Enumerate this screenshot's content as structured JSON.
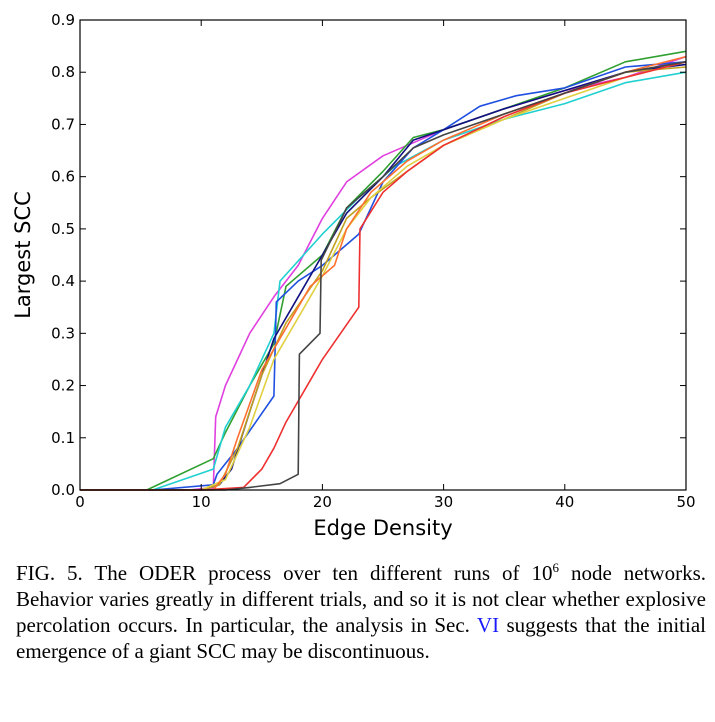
{
  "chart_data": {
    "type": "line",
    "xlabel": "Edge Density",
    "ylabel": "Largest SCC",
    "xlim": [
      0,
      50
    ],
    "ylim": [
      0,
      0.9
    ],
    "xticks": [
      0,
      10,
      20,
      30,
      40,
      50
    ],
    "yticks": [
      0.0,
      0.1,
      0.2,
      0.3,
      0.4,
      0.5,
      0.6,
      0.7,
      0.8,
      0.9
    ],
    "xtick_labels": [
      "0",
      "10",
      "20",
      "30",
      "40",
      "50"
    ],
    "ytick_labels": [
      "0.0",
      "0.1",
      "0.2",
      "0.3",
      "0.4",
      "0.5",
      "0.6",
      "0.7",
      "0.8",
      "0.9"
    ],
    "grid": false,
    "legend": "none",
    "series": [
      {
        "color": "#e040e0",
        "points": [
          [
            0,
            0
          ],
          [
            9,
            0
          ],
          [
            11,
            0.005
          ],
          [
            11.2,
            0.14
          ],
          [
            12,
            0.2
          ],
          [
            13,
            0.25
          ],
          [
            14,
            0.3
          ],
          [
            16,
            0.37
          ],
          [
            18,
            0.43
          ],
          [
            20,
            0.52
          ],
          [
            22,
            0.59
          ],
          [
            25,
            0.64
          ],
          [
            30,
            0.69
          ],
          [
            35,
            0.73
          ],
          [
            40,
            0.765
          ],
          [
            45,
            0.79
          ],
          [
            50,
            0.83
          ]
        ]
      },
      {
        "color": "#30a030",
        "points": [
          [
            0,
            0
          ],
          [
            5.5,
            0
          ],
          [
            11,
            0.06
          ],
          [
            12,
            0.11
          ],
          [
            14,
            0.2
          ],
          [
            16,
            0.28
          ],
          [
            17,
            0.39
          ],
          [
            20,
            0.45
          ],
          [
            22,
            0.54
          ],
          [
            25,
            0.61
          ],
          [
            27.5,
            0.675
          ],
          [
            30,
            0.69
          ],
          [
            35,
            0.73
          ],
          [
            40,
            0.77
          ],
          [
            45,
            0.82
          ],
          [
            50,
            0.84
          ]
        ]
      },
      {
        "color": "#20d0d0",
        "points": [
          [
            0,
            0
          ],
          [
            6,
            0
          ],
          [
            11,
            0.04
          ],
          [
            12,
            0.12
          ],
          [
            14,
            0.2
          ],
          [
            16,
            0.3
          ],
          [
            16.5,
            0.4
          ],
          [
            20,
            0.49
          ],
          [
            23,
            0.56
          ],
          [
            26,
            0.62
          ],
          [
            30,
            0.67
          ],
          [
            35,
            0.71
          ],
          [
            40,
            0.74
          ],
          [
            45,
            0.78
          ],
          [
            50,
            0.8
          ]
        ]
      },
      {
        "color": "#2050e0",
        "points": [
          [
            0,
            0
          ],
          [
            6,
            0
          ],
          [
            11,
            0.01
          ],
          [
            11.3,
            0.03
          ],
          [
            13,
            0.08
          ],
          [
            16,
            0.18
          ],
          [
            16.2,
            0.36
          ],
          [
            18,
            0.4
          ],
          [
            20,
            0.43
          ],
          [
            23,
            0.49
          ],
          [
            25,
            0.59
          ],
          [
            27.5,
            0.655
          ],
          [
            30,
            0.69
          ],
          [
            33,
            0.735
          ],
          [
            36,
            0.755
          ],
          [
            40,
            0.77
          ],
          [
            45,
            0.81
          ],
          [
            50,
            0.82
          ]
        ]
      },
      {
        "color": "#101080",
        "points": [
          [
            0,
            0
          ],
          [
            10,
            0
          ],
          [
            11.5,
            0.01
          ],
          [
            12.5,
            0.04
          ],
          [
            14,
            0.15
          ],
          [
            16,
            0.29
          ],
          [
            18,
            0.37
          ],
          [
            20,
            0.45
          ],
          [
            22,
            0.53
          ],
          [
            25,
            0.6
          ],
          [
            27.5,
            0.67
          ],
          [
            30,
            0.69
          ],
          [
            35,
            0.73
          ],
          [
            40,
            0.765
          ],
          [
            45,
            0.8
          ],
          [
            50,
            0.815
          ]
        ]
      },
      {
        "color": "#c0a020",
        "points": [
          [
            0,
            0
          ],
          [
            10,
            0
          ],
          [
            11.5,
            0.01
          ],
          [
            13,
            0.08
          ],
          [
            15,
            0.22
          ],
          [
            17,
            0.32
          ],
          [
            20,
            0.42
          ],
          [
            22,
            0.52
          ],
          [
            24,
            0.56
          ],
          [
            27,
            0.61
          ],
          [
            30,
            0.66
          ],
          [
            35,
            0.71
          ],
          [
            40,
            0.76
          ],
          [
            45,
            0.8
          ],
          [
            50,
            0.81
          ]
        ]
      },
      {
        "color": "#e0d040",
        "points": [
          [
            0,
            0
          ],
          [
            10,
            0
          ],
          [
            12,
            0.02
          ],
          [
            14,
            0.12
          ],
          [
            16,
            0.25
          ],
          [
            18,
            0.33
          ],
          [
            20,
            0.41
          ],
          [
            22,
            0.5
          ],
          [
            24,
            0.56
          ],
          [
            27,
            0.62
          ],
          [
            30,
            0.66
          ],
          [
            35,
            0.71
          ],
          [
            40,
            0.75
          ],
          [
            45,
            0.79
          ],
          [
            50,
            0.82
          ]
        ]
      },
      {
        "color": "#ff7030",
        "points": [
          [
            0,
            0
          ],
          [
            11,
            0
          ],
          [
            12,
            0.03
          ],
          [
            13,
            0.1
          ],
          [
            15,
            0.23
          ],
          [
            17,
            0.31
          ],
          [
            19,
            0.39
          ],
          [
            21,
            0.43
          ],
          [
            22,
            0.5
          ],
          [
            24,
            0.57
          ],
          [
            27,
            0.63
          ],
          [
            30,
            0.67
          ],
          [
            35,
            0.72
          ],
          [
            40,
            0.76
          ],
          [
            45,
            0.8
          ],
          [
            50,
            0.83
          ]
        ]
      },
      {
        "color": "#ee3030",
        "points": [
          [
            0,
            0
          ],
          [
            10,
            0
          ],
          [
            13.5,
            0.005
          ],
          [
            15,
            0.04
          ],
          [
            16,
            0.08
          ],
          [
            17,
            0.13
          ],
          [
            19,
            0.21
          ],
          [
            20,
            0.25
          ],
          [
            21.5,
            0.3
          ],
          [
            23,
            0.35
          ],
          [
            23.1,
            0.5
          ],
          [
            25,
            0.57
          ],
          [
            27,
            0.61
          ],
          [
            30,
            0.66
          ],
          [
            35,
            0.715
          ],
          [
            40,
            0.76
          ],
          [
            45,
            0.79
          ],
          [
            50,
            0.82
          ]
        ]
      },
      {
        "color": "#444444",
        "points": [
          [
            0,
            0
          ],
          [
            10,
            0
          ],
          [
            12,
            0
          ],
          [
            14,
            0.005
          ],
          [
            16.5,
            0.012
          ],
          [
            18,
            0.03
          ],
          [
            18.1,
            0.26
          ],
          [
            19.8,
            0.3
          ],
          [
            19.9,
            0.44
          ],
          [
            22,
            0.54
          ],
          [
            25,
            0.6
          ],
          [
            27.5,
            0.655
          ],
          [
            30,
            0.68
          ],
          [
            35,
            0.72
          ],
          [
            40,
            0.76
          ],
          [
            45,
            0.8
          ],
          [
            50,
            0.82
          ]
        ]
      }
    ]
  },
  "caption": {
    "fig_label": "FIG. 5.",
    "text_before_sup": "The ODER process over ten different runs of 10",
    "superscript": "6",
    "text_after_sup": "node networks. Behavior varies greatly in different trials, and so it is not clear whether explosive percolation occurs. In particular, the analysis in Sec.",
    "ref_link": "VI",
    "text_after_ref": "suggests that the initial emergence of a giant SCC may be discontinuous."
  }
}
